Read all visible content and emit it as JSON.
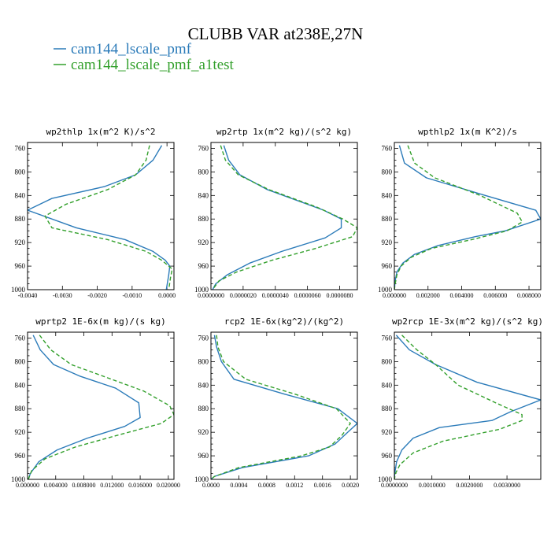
{
  "title": "CLUBB VAR at238E,27N",
  "colors": {
    "series1": "#2b7bb9",
    "series2": "#33a02c"
  },
  "legend": [
    {
      "name": "cam144_lscale_pmf",
      "color": "#2b7bb9",
      "dash": ""
    },
    {
      "name": "cam144_lscale_pmf_a1test",
      "color": "#33a02c",
      "dash": "5,3"
    }
  ],
  "chart_data": [
    {
      "type": "line",
      "title": "wp2thlp  1x(m^2 K)/s^2",
      "xlim": [
        -0.004,
        0.0002
      ],
      "ylim": [
        1000,
        750
      ],
      "yticks": [
        "760",
        "800",
        "840",
        "880",
        "920",
        "960",
        "1000"
      ],
      "yticks_num": [
        760,
        800,
        840,
        880,
        920,
        960,
        1000
      ],
      "xticks": [
        "-0.0040",
        "-0.0030",
        "-0.0020",
        "-0.0010",
        "0.0000"
      ],
      "xticks_num": [
        -0.004,
        -0.003,
        -0.002,
        -0.001,
        0
      ],
      "series": [
        {
          "name": "cam144_lscale_pmf",
          "y": [
            755,
            780,
            805,
            825,
            845,
            865,
            895,
            915,
            935,
            950,
            960,
            975,
            1000
          ],
          "x": [
            -0.00015,
            -0.0004,
            -0.0009,
            -0.0018,
            -0.0033,
            -0.004,
            -0.0026,
            -0.0012,
            -0.0004,
            -5e-05,
            8e-05,
            5e-05,
            -2e-05
          ]
        },
        {
          "name": "cam144_lscale_pmf_a1test",
          "y": [
            755,
            780,
            805,
            830,
            855,
            875,
            895,
            915,
            935,
            950,
            965,
            980,
            1000
          ],
          "x": [
            -0.0005,
            -0.0006,
            -0.0009,
            -0.0017,
            -0.0029,
            -0.0035,
            -0.0033,
            -0.0017,
            -0.0006,
            -0.00015,
            0.00015,
            0.0001,
            5e-05
          ]
        }
      ]
    },
    {
      "type": "line",
      "title": "wp2rtp  1x(m^2 kg)/(s^2 kg)",
      "xlim": [
        0,
        9.1e-06
      ],
      "ylim": [
        1000,
        750
      ],
      "yticks": [
        "760",
        "800",
        "840",
        "880",
        "920",
        "960",
        "1000"
      ],
      "yticks_num": [
        760,
        800,
        840,
        880,
        920,
        960,
        1000
      ],
      "xticks": [
        "0.0000000",
        "0.0000020",
        "0.0000040",
        "0.0000060",
        "0.0000080"
      ],
      "xticks_num": [
        0,
        2e-06,
        4e-06,
        6e-06,
        8e-06
      ],
      "series": [
        {
          "name": "cam144_lscale_pmf",
          "y": [
            755,
            780,
            805,
            830,
            865,
            880,
            895,
            912,
            935,
            955,
            975,
            990,
            1000
          ],
          "x": [
            8e-07,
            1.1e-06,
            1.8e-06,
            3.5e-06,
            7e-06,
            8.1e-06,
            8.1e-06,
            7.1e-06,
            4.4e-06,
            2.4e-06,
            1e-06,
            3e-07,
            1e-07
          ]
        },
        {
          "name": "cam144_lscale_pmf_a1test",
          "y": [
            755,
            780,
            805,
            830,
            860,
            880,
            895,
            910,
            930,
            950,
            970,
            985,
            1000
          ],
          "x": [
            6e-07,
            9e-07,
            1.7e-06,
            3.6e-06,
            6.6e-06,
            8.2e-06,
            9.1e-06,
            8.8e-06,
            6.5e-06,
            3.8e-06,
            1.6e-06,
            5e-07,
            1e-07
          ]
        }
      ]
    },
    {
      "type": "line",
      "title": "wpthlp2  1x(m K^2)/s",
      "xlim": [
        0,
        0.0087
      ],
      "ylim": [
        1000,
        750
      ],
      "yticks": [
        "760",
        "800",
        "840",
        "880",
        "920",
        "960",
        "1000"
      ],
      "yticks_num": [
        760,
        800,
        840,
        880,
        920,
        960,
        1000
      ],
      "xticks": [
        "0.000000",
        "0.002000",
        "0.004000",
        "0.006000",
        "0.008000"
      ],
      "xticks_num": [
        0,
        0.002,
        0.004,
        0.006,
        0.008
      ],
      "series": [
        {
          "name": "cam144_lscale_pmf",
          "y": [
            755,
            785,
            810,
            840,
            865,
            880,
            900,
            910,
            925,
            940,
            955,
            970,
            985,
            1000
          ],
          "x": [
            0.0003,
            0.0006,
            0.0019,
            0.0054,
            0.0084,
            0.0087,
            0.0066,
            0.0048,
            0.0026,
            0.0012,
            0.0005,
            0.00015,
            5e-05,
            0
          ]
        },
        {
          "name": "cam144_lscale_pmf_a1test",
          "y": [
            755,
            785,
            810,
            840,
            870,
            885,
            900,
            915,
            930,
            945,
            960,
            975,
            990,
            1000
          ],
          "x": [
            0.0008,
            0.0012,
            0.0024,
            0.0051,
            0.0073,
            0.0076,
            0.0067,
            0.0046,
            0.0022,
            0.001,
            0.0004,
            0.00015,
            5e-05,
            0
          ]
        }
      ]
    },
    {
      "type": "line",
      "title": "wprtp2  1E-6x(m kg)/(s kg)",
      "xlim": [
        0,
        0.0208
      ],
      "ylim": [
        1000,
        750
      ],
      "yticks": [
        "760",
        "800",
        "840",
        "880",
        "920",
        "960",
        "1000"
      ],
      "yticks_num": [
        760,
        800,
        840,
        880,
        920,
        960,
        1000
      ],
      "xticks": [
        "0.000000",
        "0.004000",
        "0.008000",
        "0.012000",
        "0.016000",
        "0.020000"
      ],
      "xticks_num": [
        0,
        0.004,
        0.008,
        0.012,
        0.016,
        0.02
      ],
      "series": [
        {
          "name": "cam144_lscale_pmf",
          "y": [
            755,
            780,
            805,
            825,
            845,
            870,
            895,
            910,
            930,
            950,
            970,
            990,
            1000
          ],
          "x": [
            0.0008,
            0.0018,
            0.0037,
            0.0075,
            0.0125,
            0.0158,
            0.016,
            0.0138,
            0.0085,
            0.0042,
            0.0016,
            0.0004,
            0.0001
          ]
        },
        {
          "name": "cam144_lscale_pmf_a1test",
          "y": [
            755,
            780,
            805,
            825,
            850,
            875,
            890,
            905,
            925,
            945,
            965,
            985,
            1000
          ],
          "x": [
            0.0017,
            0.0033,
            0.0062,
            0.0108,
            0.0165,
            0.0202,
            0.0208,
            0.019,
            0.0128,
            0.0068,
            0.0025,
            0.0006,
            0.0001
          ]
        }
      ]
    },
    {
      "type": "line",
      "title": "rcp2  1E-6x(kg^2)/(kg^2)",
      "xlim": [
        0,
        0.0021
      ],
      "ylim": [
        1000,
        750
      ],
      "yticks": [
        "760",
        "800",
        "840",
        "880",
        "920",
        "960",
        "1000"
      ],
      "yticks_num": [
        760,
        800,
        840,
        880,
        920,
        960,
        1000
      ],
      "xticks": [
        "0.0000",
        "0.0004",
        "0.0008",
        "0.0012",
        "0.0016",
        "0.0020"
      ],
      "xticks_num": [
        0,
        0.0004,
        0.0008,
        0.0012,
        0.0016,
        0.002
      ],
      "series": [
        {
          "name": "cam144_lscale_pmf",
          "y": [
            755,
            775,
            800,
            830,
            855,
            880,
            905,
            918,
            940,
            960,
            980,
            995,
            1000
          ],
          "x": [
            5e-05,
            8e-05,
            0.00015,
            0.00033,
            0.00105,
            0.00182,
            0.0021,
            0.00198,
            0.00178,
            0.0014,
            0.00045,
            5e-05,
            0
          ]
        },
        {
          "name": "cam144_lscale_pmf_a1test",
          "y": [
            755,
            775,
            800,
            830,
            855,
            880,
            905,
            925,
            945,
            960,
            980,
            995,
            1000
          ],
          "x": [
            8e-05,
            0.0001,
            0.00018,
            0.0005,
            0.0012,
            0.0018,
            0.002,
            0.00188,
            0.0017,
            0.0013,
            0.0004,
            5e-05,
            0
          ]
        }
      ]
    },
    {
      "type": "line",
      "title": "wp2rcp  1E-3x(m^2 kg)/(s^2 kg)",
      "xlim": [
        0,
        0.0039
      ],
      "ylim": [
        1000,
        750
      ],
      "yticks": [
        "760",
        "800",
        "840",
        "880",
        "920",
        "960",
        "1000"
      ],
      "yticks_num": [
        760,
        800,
        840,
        880,
        920,
        960,
        1000
      ],
      "xticks": [
        "0.0000000",
        "0.0010000",
        "0.0020000",
        "0.0030000"
      ],
      "xticks_num": [
        0,
        0.001,
        0.002,
        0.003
      ],
      "series": [
        {
          "name": "cam144_lscale_pmf",
          "y": [
            755,
            780,
            805,
            835,
            865,
            885,
            900,
            912,
            930,
            950,
            970,
            990,
            1000
          ],
          "x": [
            5e-05,
            0.0004,
            0.0011,
            0.0022,
            0.0039,
            0.0031,
            0.0026,
            0.0012,
            0.0005,
            0.0002,
            6e-05,
            1e-05,
            0
          ]
        },
        {
          "name": "cam144_lscale_pmf_a1test",
          "y": [
            755,
            780,
            805,
            840,
            870,
            890,
            900,
            915,
            935,
            955,
            975,
            990,
            1000
          ],
          "x": [
            0.0002,
            0.0006,
            0.0011,
            0.0017,
            0.0027,
            0.0034,
            0.0034,
            0.0028,
            0.0013,
            0.0005,
            0.00015,
            3e-05,
            0
          ]
        }
      ]
    }
  ]
}
